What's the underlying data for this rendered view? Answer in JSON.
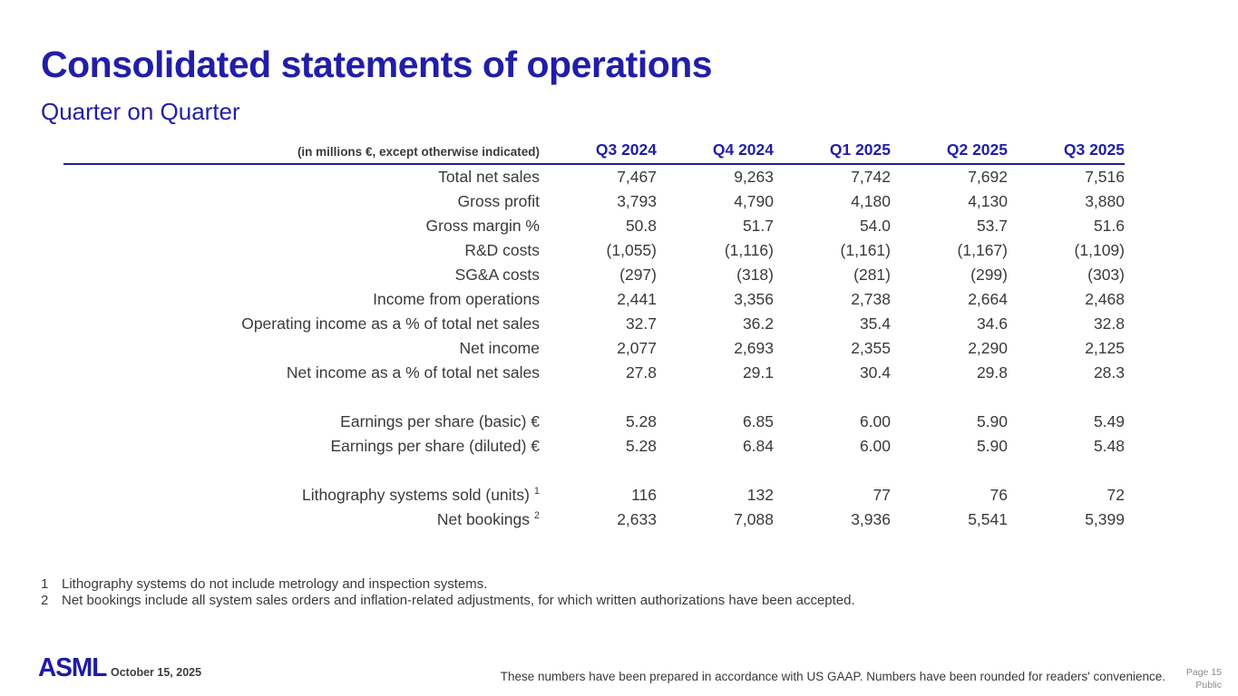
{
  "slide": {
    "title": "Consolidated statements of operations",
    "subtitle": "Quarter on Quarter"
  },
  "table": {
    "unit_note": "(in millions €, except otherwise indicated)",
    "columns": [
      "Q3 2024",
      "Q4 2024",
      "Q1 2025",
      "Q2 2025",
      "Q3 2025"
    ],
    "rows": [
      {
        "label": "Total net sales",
        "values": [
          "7,467",
          "9,263",
          "7,742",
          "7,692",
          "7,516"
        ]
      },
      {
        "label": "Gross profit",
        "values": [
          "3,793",
          "4,790",
          "4,180",
          "4,130",
          "3,880"
        ]
      },
      {
        "label": "Gross margin %",
        "values": [
          "50.8",
          "51.7",
          "54.0",
          "53.7",
          "51.6"
        ]
      },
      {
        "label": "R&D costs",
        "values": [
          "(1,055)",
          "(1,116)",
          "(1,161)",
          "(1,167)",
          "(1,109)"
        ]
      },
      {
        "label": "SG&A costs",
        "values": [
          "(297)",
          "(318)",
          "(281)",
          "(299)",
          "(303)"
        ]
      },
      {
        "label": "Income from operations",
        "values": [
          "2,441",
          "3,356",
          "2,738",
          "2,664",
          "2,468"
        ]
      },
      {
        "label": "Operating income as a % of total net sales",
        "values": [
          "32.7",
          "36.2",
          "35.4",
          "34.6",
          "32.8"
        ]
      },
      {
        "label": "Net income",
        "values": [
          "2,077",
          "2,693",
          "2,355",
          "2,290",
          "2,125"
        ]
      },
      {
        "label": "Net income as a % of total net sales",
        "values": [
          "27.8",
          "29.1",
          "30.4",
          "29.8",
          "28.3"
        ]
      },
      {
        "spacer": true
      },
      {
        "label": "Earnings per share (basic) €",
        "values": [
          "5.28",
          "6.85",
          "6.00",
          "5.90",
          "5.49"
        ]
      },
      {
        "label": "Earnings per share (diluted) €",
        "values": [
          "5.28",
          "6.84",
          "6.00",
          "5.90",
          "5.48"
        ]
      },
      {
        "spacer": true
      },
      {
        "label": "Lithography systems sold (units)",
        "sup": "1",
        "values": [
          "116",
          "132",
          "77",
          "76",
          "72"
        ]
      },
      {
        "label": "Net bookings",
        "sup": "2",
        "values": [
          "2,633",
          "7,088",
          "3,936",
          "5,541",
          "5,399"
        ]
      }
    ]
  },
  "footnotes": [
    {
      "number": "1",
      "text": "Lithography systems do not include metrology and inspection systems."
    },
    {
      "number": "2",
      "text": "Net bookings include all system sales orders and inflation-related adjustments, for which written authorizations have been accepted."
    }
  ],
  "footer": {
    "logo": "ASML",
    "date": "October 15, 2025",
    "disclaimer": "These numbers have been prepared in accordance with US GAAP.  Numbers have been rounded for readers' convenience.",
    "page": "Page 15",
    "classification": "Public"
  },
  "colors": {
    "brand_blue": "#211ea8",
    "rule_blue": "#24218f",
    "text": "#3a3a3a",
    "muted": "#8a8a8a"
  }
}
